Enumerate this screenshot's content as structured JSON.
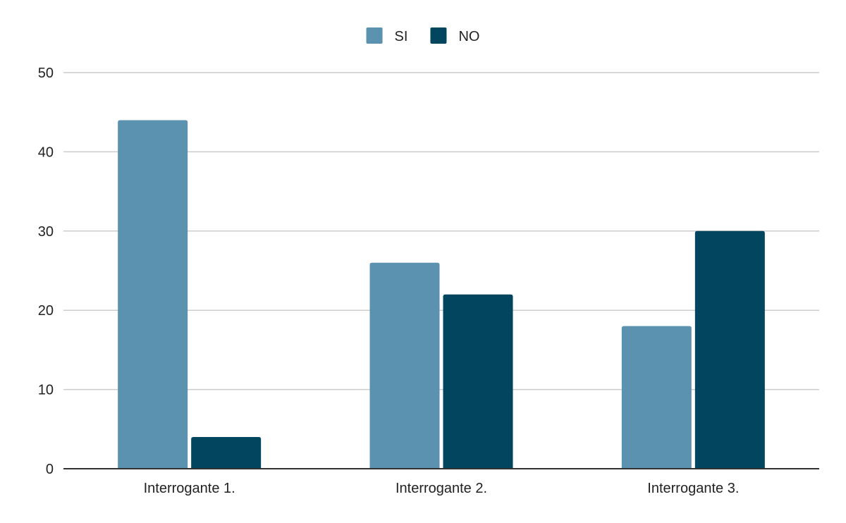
{
  "chart_data": {
    "type": "bar",
    "categories": [
      "Interrogante 1.",
      "Interrogante 2.",
      "Interrogante 3."
    ],
    "series": [
      {
        "name": "SI",
        "values": [
          44,
          26,
          18
        ],
        "color": "#5a92b0"
      },
      {
        "name": "NO",
        "values": [
          4,
          22,
          30
        ],
        "color": "#01455f"
      }
    ],
    "title": "",
    "xlabel": "",
    "ylabel": "",
    "ylim": [
      0,
      50
    ],
    "yticks": [
      0,
      10,
      20,
      30,
      40,
      50
    ],
    "grid": true,
    "legend_position": "top-center"
  },
  "colors": {
    "grid": "#cccccc",
    "axis": "#333333",
    "text": "#222222"
  }
}
